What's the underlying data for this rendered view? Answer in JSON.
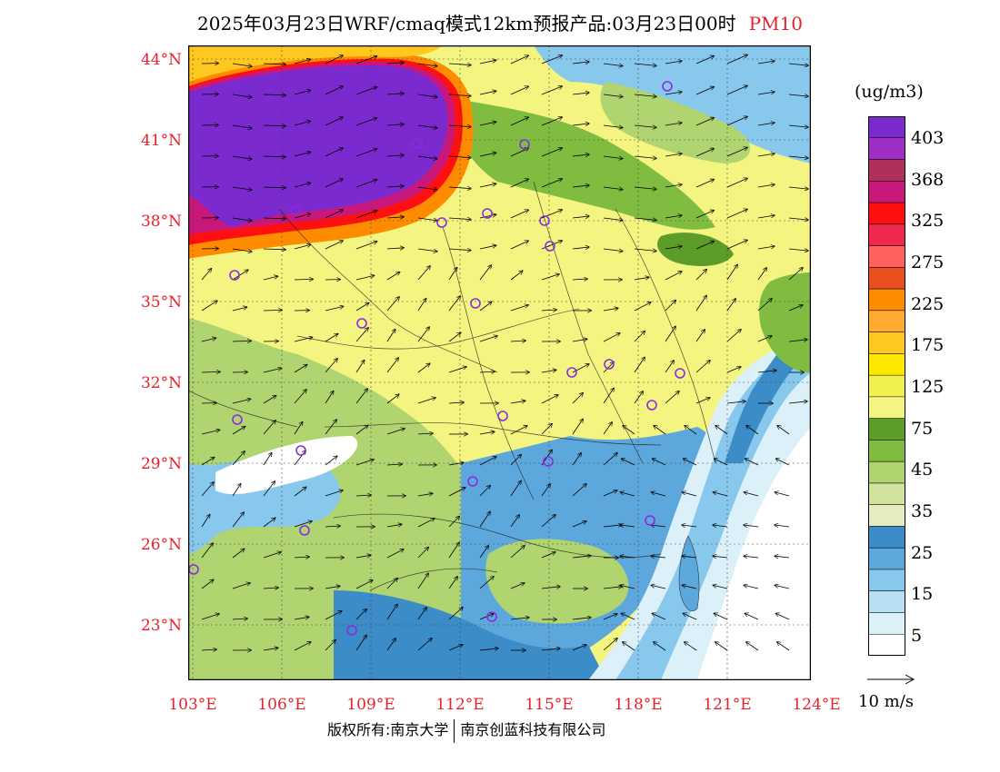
{
  "title": {
    "text": "2025年03月23日WRF/cmaq模式12km预报产品:03月23日00时",
    "pollutant": "PM10"
  },
  "map": {
    "lat_labels": [
      "44°N",
      "41°N",
      "38°N",
      "35°N",
      "32°N",
      "29°N",
      "26°N",
      "23°N"
    ],
    "lon_labels": [
      "103°E",
      "106°E",
      "109°E",
      "112°E",
      "115°E",
      "118°E",
      "121°E",
      "124°E"
    ],
    "lat_range": [
      21,
      44.3
    ],
    "lon_range": [
      103,
      124
    ]
  },
  "colorbar": {
    "unit": "(ug/m3)",
    "labels": [
      "403",
      "368",
      "325",
      "275",
      "225",
      "175",
      "125",
      "75",
      "45",
      "35",
      "25",
      "15",
      "5"
    ],
    "colors": [
      "#7b2ad0",
      "#9d2fc4",
      "#b0305c",
      "#c8187c",
      "#ff1010",
      "#f02850",
      "#ff6060",
      "#e85020",
      "#ff8c00",
      "#ffaa30",
      "#ffc820",
      "#ffe800",
      "#f0f050",
      "#f4f480",
      "#5c9c28",
      "#80bc40",
      "#b0d470",
      "#d0e4a0",
      "#e4ecc0",
      "#3c8cc8",
      "#5ca8dc",
      "#88c8ec",
      "#b8e0f4",
      "#dcf0fa",
      "#ffffff"
    ]
  },
  "wind_reference": {
    "label": "10 m/s"
  },
  "copyright": {
    "left": "版权所有:南京大学",
    "right": "南京创蓝科技有限公司"
  }
}
